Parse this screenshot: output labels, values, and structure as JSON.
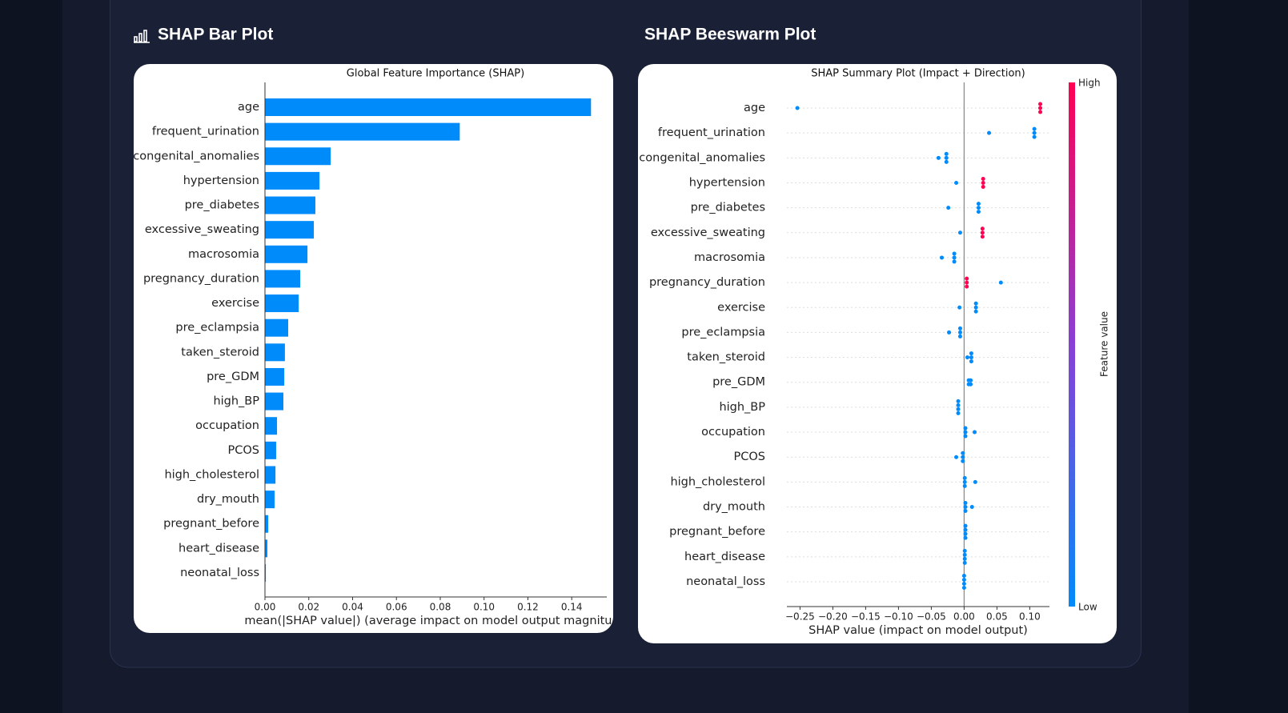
{
  "headings": [
    "SHAP Bar Plot",
    "SHAP Beeswarm Plot"
  ],
  "chart_data": [
    {
      "type": "bar",
      "orientation": "horizontal",
      "title": "Global Feature Importance (SHAP)",
      "xlabel": "mean(|SHAP value|) (average impact on model output magnitude",
      "categories": [
        "age",
        "frequent_urination",
        "congenital_anomalies",
        "hypertension",
        "pre_diabetes",
        "excessive_sweating",
        "macrosomia",
        "pregnancy_duration",
        "exercise",
        "pre_eclampsia",
        "taken_steroid",
        "pre_GDM",
        "high_BP",
        "occupation",
        "PCOS",
        "high_cholesterol",
        "dry_mouth",
        "pregnant_before",
        "heart_disease",
        "neonatal_loss"
      ],
      "values": [
        0.1488,
        0.0889,
        0.03,
        0.0249,
        0.023,
        0.0223,
        0.0194,
        0.0161,
        0.0154,
        0.0106,
        0.0091,
        0.0088,
        0.0084,
        0.0055,
        0.0051,
        0.0048,
        0.0044,
        0.0015,
        0.0011,
        0.0004
      ],
      "color": "#008bfb",
      "xlim": [
        0,
        0.156
      ],
      "xticks": [
        {
          "value": 0,
          "label": "0.00"
        },
        0.02,
        0.04,
        0.06,
        0.08,
        {
          "value": 0.1,
          "label": "0.10"
        },
        0.12,
        0.14
      ]
    },
    {
      "type": "beeswarm",
      "title": "SHAP Summary Plot (Impact + Direction)",
      "xlabel": "SHAP value (impact on model output)",
      "categories": [
        "age",
        "frequent_urination",
        "congenital_anomalies",
        "hypertension",
        "pre_diabetes",
        "excessive_sweating",
        "macrosomia",
        "pregnancy_duration",
        "exercise",
        "pre_eclampsia",
        "taken_steroid",
        "pre_GDM",
        "high_BP",
        "occupation",
        "PCOS",
        "high_cholesterol",
        "dry_mouth",
        "pregnant_before",
        "heart_disease",
        "neonatal_loss"
      ],
      "shap": [
        [
          -0.254,
          0.116,
          0.116,
          0.116
        ],
        [
          0.038,
          0.107,
          0.107,
          0.107
        ],
        [
          -0.039,
          -0.027,
          -0.027,
          -0.027
        ],
        [
          -0.012,
          0.029,
          0.029,
          0.029
        ],
        [
          -0.024,
          0.022,
          0.022,
          0.022
        ],
        [
          -0.006,
          0.028,
          0.028,
          0.028
        ],
        [
          -0.034,
          -0.015,
          -0.015,
          -0.015
        ],
        [
          0.004,
          0.004,
          0.004,
          0.056
        ],
        [
          -0.007,
          0.018,
          0.018,
          0.018
        ],
        [
          -0.023,
          -0.006,
          -0.006,
          -0.006
        ],
        [
          0.005,
          0.011,
          0.011,
          0.011
        ],
        [
          0.007,
          0.01,
          0.01,
          0.007
        ],
        [
          -0.009,
          -0.009,
          -0.009,
          -0.009
        ],
        [
          0.002,
          0.002,
          0.002,
          0.016
        ],
        [
          -0.012,
          -0.002,
          -0.002,
          -0.002
        ],
        [
          0.001,
          0.001,
          0.001,
          0.017
        ],
        [
          0.002,
          0.002,
          0.002,
          0.012
        ],
        [
          0.002,
          0.002,
          0.002,
          0.002
        ],
        [
          0.001,
          0.001,
          0.001,
          0.001
        ],
        [
          0,
          0,
          0,
          0
        ]
      ],
      "feature_values": [
        [
          0,
          1,
          1,
          1
        ],
        [
          0,
          0,
          0,
          0
        ],
        [
          0,
          0,
          0,
          0
        ],
        [
          0,
          1,
          1,
          1
        ],
        [
          0,
          0,
          0,
          0
        ],
        [
          0,
          1,
          1,
          1
        ],
        [
          0,
          0,
          0,
          0
        ],
        [
          1,
          1,
          1,
          0
        ],
        [
          0,
          0,
          0,
          0
        ],
        [
          0,
          0,
          0,
          0
        ],
        [
          0,
          0,
          0,
          0
        ],
        [
          0,
          0,
          0,
          0
        ],
        [
          0,
          0,
          0,
          0
        ],
        [
          0,
          0,
          0,
          0
        ],
        [
          0,
          0,
          0,
          0
        ],
        [
          0,
          0,
          0,
          0
        ],
        [
          0,
          0,
          0,
          0
        ],
        [
          0,
          0,
          0,
          0
        ],
        [
          0,
          0,
          0,
          0
        ],
        [
          0,
          0,
          0,
          0
        ]
      ],
      "low_color": "#008bfb",
      "high_color": "#ff0052",
      "colorbar_label": "Feature value",
      "colorbar_high": "High",
      "colorbar_low": "Low",
      "xlim": [
        -0.27,
        0.13
      ],
      "xticks": [
        {
          "value": -0.25,
          "label": "−0.25"
        },
        {
          "value": -0.2,
          "label": "−0.20"
        },
        {
          "value": -0.15,
          "label": "−0.15"
        },
        {
          "value": -0.1,
          "label": "−0.10"
        },
        {
          "value": -0.05,
          "label": "−0.05"
        },
        {
          "value": 0,
          "label": "0.00"
        },
        0.05,
        {
          "value": 0.1,
          "label": "0.10"
        }
      ]
    }
  ]
}
